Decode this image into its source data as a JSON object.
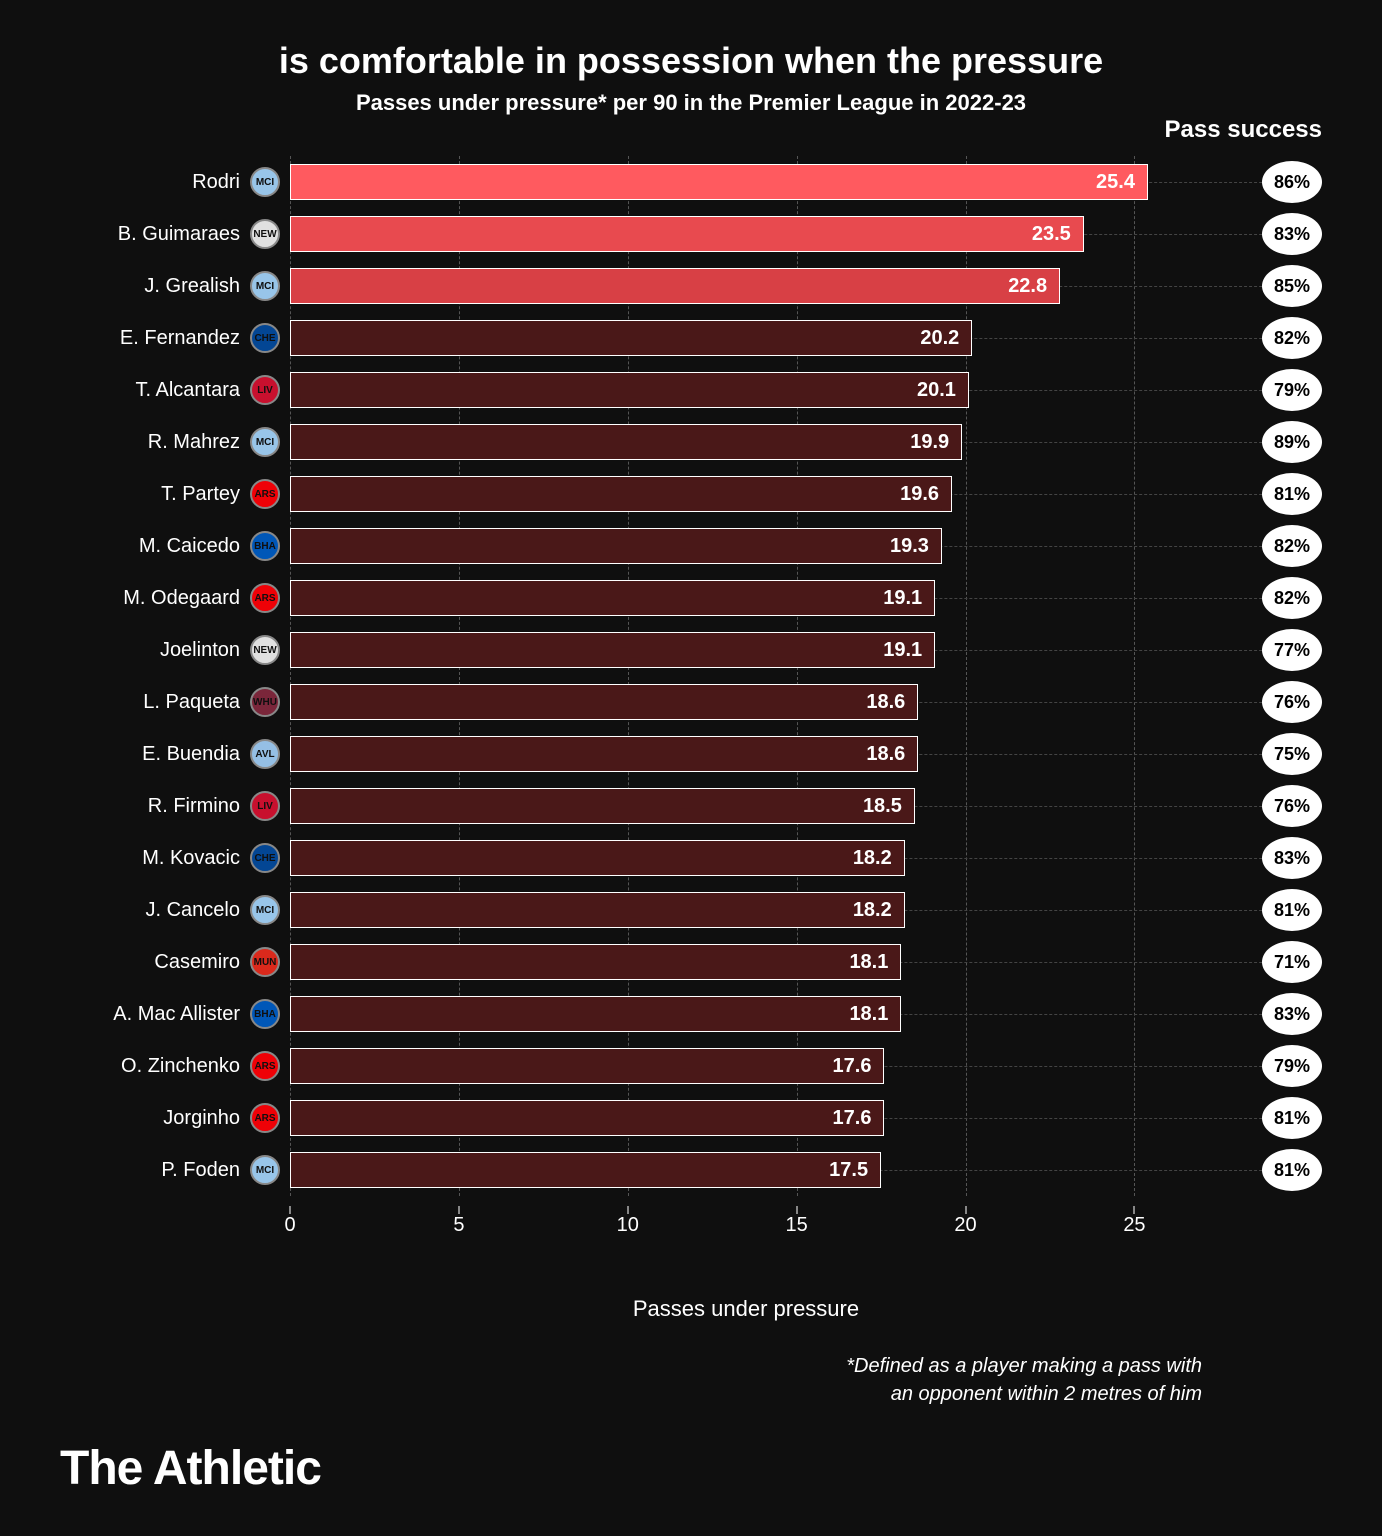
{
  "title": "is comfortable in possession when the pressure",
  "subtitle": "Passes under pressure* per 90 in the Premier League in 2022-23",
  "pass_success_header": "Pass success",
  "x_label": "Passes under pressure",
  "footnote_line1": "*Defined as a player making a pass with",
  "footnote_line2": "an opponent within 2 metres of him",
  "brand": "The Athletic",
  "chart": {
    "type": "bar",
    "xlim": [
      0,
      27
    ],
    "xticks": [
      0,
      5,
      10,
      15,
      20,
      25
    ],
    "background_color": "#0f0f0f",
    "grid_color": "#555555",
    "bar_border_color": "#ffffff",
    "highlight_colors": [
      "#ff5a5f",
      "#e84a4f",
      "#d84045"
    ],
    "default_bar_color": "#4a1818",
    "text_color": "#ffffff",
    "pill_bg": "#ffffff",
    "pill_text": "#000000",
    "title_fontsize": 36,
    "subtitle_fontsize": 22,
    "axis_fontsize": 20,
    "value_fontsize": 20,
    "players": [
      {
        "name": "Rodri",
        "club": "MCI",
        "club_bg": "#98c5e9",
        "value": 25.4,
        "success": "86%",
        "highlight": 0
      },
      {
        "name": "B. Guimaraes",
        "club": "NEW",
        "club_bg": "#e0e0e0",
        "value": 23.5,
        "success": "83%",
        "highlight": 1
      },
      {
        "name": "J. Grealish",
        "club": "MCI",
        "club_bg": "#98c5e9",
        "value": 22.8,
        "success": "85%",
        "highlight": 2
      },
      {
        "name": "E. Fernandez",
        "club": "CHE",
        "club_bg": "#034694",
        "value": 20.2,
        "success": "82%",
        "highlight": -1
      },
      {
        "name": "T. Alcantara",
        "club": "LIV",
        "club_bg": "#c8102e",
        "value": 20.1,
        "success": "79%",
        "highlight": -1
      },
      {
        "name": "R. Mahrez",
        "club": "MCI",
        "club_bg": "#98c5e9",
        "value": 19.9,
        "success": "89%",
        "highlight": -1
      },
      {
        "name": "T. Partey",
        "club": "ARS",
        "club_bg": "#ef0107",
        "value": 19.6,
        "success": "81%",
        "highlight": -1
      },
      {
        "name": "M. Caicedo",
        "club": "BHA",
        "club_bg": "#0057b8",
        "value": 19.3,
        "success": "82%",
        "highlight": -1
      },
      {
        "name": "M. Odegaard",
        "club": "ARS",
        "club_bg": "#ef0107",
        "value": 19.1,
        "success": "82%",
        "highlight": -1
      },
      {
        "name": "Joelinton",
        "club": "NEW",
        "club_bg": "#e0e0e0",
        "value": 19.1,
        "success": "77%",
        "highlight": -1
      },
      {
        "name": "L. Paqueta",
        "club": "WHU",
        "club_bg": "#7a263a",
        "value": 18.6,
        "success": "76%",
        "highlight": -1
      },
      {
        "name": "E. Buendia",
        "club": "AVL",
        "club_bg": "#95bfe5",
        "value": 18.6,
        "success": "75%",
        "highlight": -1
      },
      {
        "name": "R. Firmino",
        "club": "LIV",
        "club_bg": "#c8102e",
        "value": 18.5,
        "success": "76%",
        "highlight": -1
      },
      {
        "name": "M. Kovacic",
        "club": "CHE",
        "club_bg": "#034694",
        "value": 18.2,
        "success": "83%",
        "highlight": -1
      },
      {
        "name": "J. Cancelo",
        "club": "MCI",
        "club_bg": "#98c5e9",
        "value": 18.2,
        "success": "81%",
        "highlight": -1
      },
      {
        "name": "Casemiro",
        "club": "MUN",
        "club_bg": "#da291c",
        "value": 18.1,
        "success": "71%",
        "highlight": -1
      },
      {
        "name": "A. Mac Allister",
        "club": "BHA",
        "club_bg": "#0057b8",
        "value": 18.1,
        "success": "83%",
        "highlight": -1
      },
      {
        "name": "O. Zinchenko",
        "club": "ARS",
        "club_bg": "#ef0107",
        "value": 17.6,
        "success": "79%",
        "highlight": -1
      },
      {
        "name": "Jorginho",
        "club": "ARS",
        "club_bg": "#ef0107",
        "value": 17.6,
        "success": "81%",
        "highlight": -1
      },
      {
        "name": "P. Foden",
        "club": "MCI",
        "club_bg": "#98c5e9",
        "value": 17.5,
        "success": "81%",
        "highlight": -1
      }
    ]
  }
}
